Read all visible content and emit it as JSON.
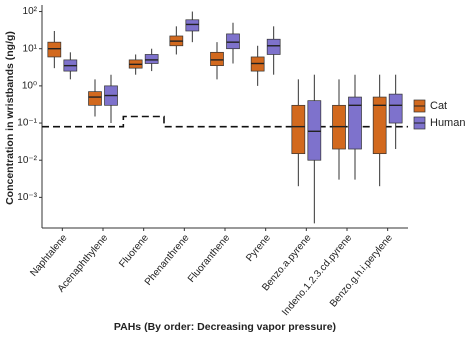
{
  "chart_data": {
    "type": "box",
    "y_label": "Concentration in wristbands (ng/g)",
    "x_label": "PAHs (By order: Decreasing vapor pressure)",
    "categories": [
      "Naphtalene",
      "Acenaphthylene",
      "Fluorene",
      "Phenanthrene",
      "Fluoranthene",
      "Pyrene",
      "Benzo.a.pyrene",
      "Indeno.1.2.3.cd.pyrene",
      "Benzo.g.h.i.perylene"
    ],
    "log_scale": true,
    "ylim": [
      0.00015,
      150
    ],
    "yticks": [
      {
        "value": 0.001,
        "label": "10⁻³"
      },
      {
        "value": 0.01,
        "label": "10⁻²"
      },
      {
        "value": 0.1,
        "label": "10⁻¹"
      },
      {
        "value": 1,
        "label": "10⁰"
      },
      {
        "value": 10,
        "label": "10¹"
      },
      {
        "value": 100,
        "label": "10²"
      }
    ],
    "legend_position": "right",
    "dashed_line": [
      0.08,
      0.08,
      0.15,
      0.08,
      0.08,
      0.08,
      0.08,
      0.08,
      0.08
    ],
    "series": [
      {
        "name": "Cat",
        "color": "#d2691e",
        "low": [
          3,
          0.15,
          2,
          7,
          1.5,
          1,
          0.002,
          0.003,
          0.002
        ],
        "q1": [
          6,
          0.3,
          3,
          12,
          3.5,
          2.5,
          0.015,
          0.02,
          0.015
        ],
        "median": [
          10,
          0.5,
          3.8,
          16,
          5,
          4,
          0.08,
          0.08,
          0.3
        ],
        "q3": [
          15,
          0.7,
          5,
          22,
          8,
          6,
          0.3,
          0.3,
          0.5
        ],
        "high": [
          30,
          1.5,
          7,
          40,
          15,
          12,
          1.5,
          1.5,
          2
        ]
      },
      {
        "name": "Human",
        "color": "#7e72cc",
        "low": [
          1.5,
          0.1,
          2.5,
          15,
          4,
          2,
          0.0002,
          0.003,
          0.02
        ],
        "q1": [
          2.5,
          0.3,
          4,
          30,
          10,
          7,
          0.01,
          0.02,
          0.1
        ],
        "median": [
          3.5,
          0.55,
          5,
          45,
          15,
          12,
          0.06,
          0.3,
          0.3
        ],
        "q3": [
          5,
          1,
          7,
          60,
          25,
          18,
          0.4,
          0.5,
          0.6
        ],
        "high": [
          8,
          2,
          10,
          100,
          50,
          40,
          2,
          2,
          2
        ]
      }
    ]
  }
}
